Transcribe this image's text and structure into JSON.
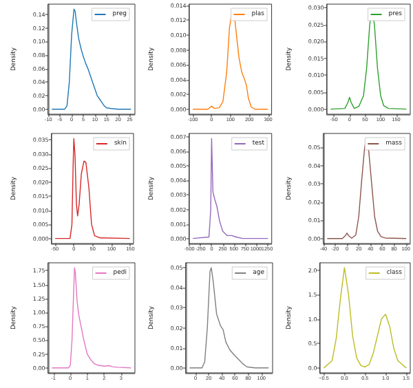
{
  "chart_data": [
    {
      "type": "line",
      "ylabel": "Density",
      "legend": "top right",
      "grid": false,
      "xlim": [
        -10.2,
        27.2
      ],
      "xticks": [
        -10,
        -5,
        0,
        5,
        10,
        15,
        20,
        25
      ],
      "ylim": [
        -0.0074,
        0.1554
      ],
      "yticks": [
        {
          "value": 0,
          "label": "0.00"
        },
        {
          "value": 0.02,
          "label": "0.02"
        },
        {
          "value": 0.04,
          "label": "0.04"
        },
        {
          "value": 0.06,
          "label": "0.06"
        },
        {
          "value": 0.08,
          "label": "0.08"
        },
        {
          "value": 0.1,
          "label": "0.10"
        },
        {
          "value": 0.12,
          "label": "0.12"
        },
        {
          "value": 0.14,
          "label": "0.14"
        }
      ],
      "x": [
        -8.5,
        -3,
        -2,
        -1,
        0,
        1,
        1.5,
        2,
        3,
        4,
        5,
        6,
        7,
        8,
        9,
        10,
        11,
        12,
        13,
        14,
        15,
        17,
        20,
        25.5
      ],
      "series": [
        {
          "name": "preg",
          "color": "#1f77b4",
          "values": [
            0,
            0,
            0.005,
            0.04,
            0.11,
            0.148,
            0.145,
            0.13,
            0.105,
            0.09,
            0.078,
            0.068,
            0.06,
            0.05,
            0.04,
            0.03,
            0.02,
            0.015,
            0.01,
            0.005,
            0.002,
            0.001,
            0,
            0
          ]
        }
      ]
    },
    {
      "type": "line",
      "ylabel": "Density",
      "legend": "top right",
      "grid": false,
      "xlim": [
        -119.4,
        318.4
      ],
      "xticks": [
        -100,
        0,
        100,
        200,
        300
      ],
      "ylim": [
        -0.000675,
        0.014175
      ],
      "yticks": [
        {
          "value": 0,
          "label": "0.000"
        },
        {
          "value": 0.002,
          "label": "0.002"
        },
        {
          "value": 0.004,
          "label": "0.004"
        },
        {
          "value": 0.006,
          "label": "0.006"
        },
        {
          "value": 0.008,
          "label": "0.008"
        },
        {
          "value": 0.01,
          "label": "0.010"
        },
        {
          "value": 0.012,
          "label": "0.012"
        },
        {
          "value": 0.014,
          "label": "0.014"
        }
      ],
      "x": [
        -99.5,
        -20,
        0,
        15,
        40,
        60,
        80,
        95,
        110,
        120,
        130,
        145,
        160,
        175,
        185,
        195,
        210,
        230,
        298.5
      ],
      "series": [
        {
          "name": "plas",
          "color": "#ff7f0e",
          "values": [
            0,
            0,
            0.0004,
            0.0001,
            0.0002,
            0.001,
            0.005,
            0.011,
            0.0135,
            0.0128,
            0.0105,
            0.007,
            0.005,
            0.004,
            0.0032,
            0.0015,
            0.0003,
            0,
            0
          ]
        }
      ]
    },
    {
      "type": "line",
      "ylabel": "Density",
      "legend": "top right",
      "grid": false,
      "xlim": [
        -73.2,
        195.2
      ],
      "xticks": [
        -50,
        0,
        50,
        100,
        150
      ],
      "ylim": [
        -0.0015,
        0.031
      ],
      "yticks": [
        {
          "value": 0,
          "label": "0.000"
        },
        {
          "value": 0.005,
          "label": "0.005"
        },
        {
          "value": 0.01,
          "label": "0.010"
        },
        {
          "value": 0.015,
          "label": "0.015"
        },
        {
          "value": 0.02,
          "label": "0.020"
        },
        {
          "value": 0.025,
          "label": "0.025"
        },
        {
          "value": 0.03,
          "label": "0.030"
        }
      ],
      "x": [
        -61,
        -15,
        -5,
        0,
        5,
        15,
        30,
        45,
        55,
        65,
        72,
        80,
        90,
        100,
        110,
        125,
        183
      ],
      "series": [
        {
          "name": "pres",
          "color": "#2ca02c",
          "values": [
            0,
            0.0002,
            0.002,
            0.0035,
            0.002,
            0.0002,
            0.0008,
            0.004,
            0.012,
            0.025,
            0.0295,
            0.025,
            0.012,
            0.004,
            0.001,
            0.0002,
            0
          ]
        }
      ]
    },
    {
      "type": "line",
      "ylabel": "Density",
      "legend": "top right",
      "grid": false,
      "xlim": [
        -59.4,
        158.4
      ],
      "xticks": [
        -50,
        0,
        50,
        100,
        150
      ],
      "ylim": [
        -0.0018,
        0.0373
      ],
      "yticks": [
        {
          "value": 0,
          "label": "0.000"
        },
        {
          "value": 0.005,
          "label": "0.005"
        },
        {
          "value": 0.01,
          "label": "0.010"
        },
        {
          "value": 0.015,
          "label": "0.015"
        },
        {
          "value": 0.02,
          "label": "0.020"
        },
        {
          "value": 0.025,
          "label": "0.025"
        },
        {
          "value": 0.03,
          "label": "0.030"
        },
        {
          "value": 0.035,
          "label": "0.035"
        }
      ],
      "x": [
        -49.5,
        -10,
        -5,
        -2,
        0,
        3,
        7,
        10,
        14,
        20,
        27,
        32,
        40,
        47,
        55,
        70,
        148.5
      ],
      "series": [
        {
          "name": "skin",
          "color": "#d62728",
          "values": [
            0,
            0,
            0.005,
            0.025,
            0.0355,
            0.03,
            0.012,
            0.008,
            0.012,
            0.023,
            0.0275,
            0.027,
            0.018,
            0.005,
            0.001,
            0.0002,
            0
          ]
        }
      ]
    },
    {
      "type": "line",
      "ylabel": "Density",
      "legend": "top right",
      "grid": false,
      "xlim": [
        -507.6,
        1353.6
      ],
      "xticks": [
        -500,
        -250,
        0,
        250,
        500,
        750,
        1000,
        1250
      ],
      "ylim": [
        -0.00035,
        0.00725
      ],
      "yticks": [
        {
          "value": 0,
          "label": "0.000"
        },
        {
          "value": 0.001,
          "label": "0.001"
        },
        {
          "value": 0.002,
          "label": "0.002"
        },
        {
          "value": 0.003,
          "label": "0.003"
        },
        {
          "value": 0.004,
          "label": "0.004"
        },
        {
          "value": 0.005,
          "label": "0.005"
        },
        {
          "value": 0.006,
          "label": "0.006"
        },
        {
          "value": 0.007,
          "label": "0.007"
        }
      ],
      "x": [
        -423,
        -60,
        -20,
        0,
        15,
        30,
        70,
        120,
        180,
        250,
        350,
        450,
        550,
        700,
        1269
      ],
      "series": [
        {
          "name": "test",
          "color": "#9467bd",
          "values": [
            0,
            0.0001,
            0.002,
            0.0069,
            0.005,
            0.0032,
            0.0027,
            0.0022,
            0.0012,
            0.0005,
            0.0002,
            0.0002,
            0.0001,
            0,
            0
          ]
        }
      ]
    },
    {
      "type": "line",
      "ylabel": "Density",
      "legend": "top right",
      "grid": false,
      "xlim": [
        -40.26,
        107.36
      ],
      "xticks": [
        -40,
        -20,
        0,
        20,
        40,
        60,
        80,
        100
      ],
      "ylim": [
        -0.00275,
        0.05775
      ],
      "yticks": [
        {
          "value": 0,
          "label": "0.00"
        },
        {
          "value": 0.01,
          "label": "0.01"
        },
        {
          "value": 0.02,
          "label": "0.02"
        },
        {
          "value": 0.03,
          "label": "0.03"
        },
        {
          "value": 0.04,
          "label": "0.04"
        },
        {
          "value": 0.05,
          "label": "0.05"
        }
      ],
      "x": [
        -33.55,
        -8,
        -3,
        0,
        3,
        8,
        15,
        20,
        25,
        30,
        33,
        37,
        42,
        47,
        52,
        58,
        65,
        100.65
      ],
      "series": [
        {
          "name": "mass",
          "color": "#8c564b",
          "values": [
            0,
            0,
            0.0015,
            0.003,
            0.0015,
            0.0002,
            0.002,
            0.012,
            0.032,
            0.05,
            0.055,
            0.048,
            0.03,
            0.012,
            0.004,
            0.001,
            0.0003,
            0
          ]
        }
      ]
    },
    {
      "type": "line",
      "ylabel": "Density",
      "legend": "top right",
      "grid": false,
      "xlim": [
        -1.327,
        3.825
      ],
      "xticks": [
        -1,
        0,
        1,
        2,
        3
      ],
      "ylim": [
        -0.09,
        1.89
      ],
      "yticks": [
        {
          "value": 0,
          "label": "0.00"
        },
        {
          "value": 0.25,
          "label": "0.25"
        },
        {
          "value": 0.5,
          "label": "0.50"
        },
        {
          "value": 0.75,
          "label": "0.75"
        },
        {
          "value": 1,
          "label": "1.00"
        },
        {
          "value": 1.25,
          "label": "1.25"
        },
        {
          "value": 1.5,
          "label": "1.50"
        },
        {
          "value": 1.75,
          "label": "1.75"
        }
      ],
      "x": [
        -1.093,
        -0.1,
        0,
        0.1,
        0.2,
        0.25,
        0.3,
        0.4,
        0.5,
        0.6,
        0.8,
        1,
        1.2,
        1.4,
        1.6,
        2,
        2.3,
        2.5,
        2.8,
        3.591
      ],
      "series": [
        {
          "name": "pedi",
          "color": "#e377c2",
          "values": [
            0,
            0,
            0.05,
            0.5,
            1.4,
            1.8,
            1.7,
            1.2,
            0.95,
            0.8,
            0.5,
            0.25,
            0.15,
            0.08,
            0.05,
            0.03,
            0.04,
            0.02,
            0.01,
            0
          ]
        }
      ]
    },
    {
      "type": "line",
      "ylabel": "Density",
      "legend": "top right",
      "grid": false,
      "xlim": [
        -15,
        117
      ],
      "xticks": [
        0,
        20,
        40,
        60,
        80,
        100
      ],
      "ylim": [
        -0.0025,
        0.0525
      ],
      "yticks": [
        {
          "value": 0,
          "label": "0.00"
        },
        {
          "value": 0.01,
          "label": "0.01"
        },
        {
          "value": 0.02,
          "label": "0.02"
        },
        {
          "value": 0.03,
          "label": "0.03"
        },
        {
          "value": 0.04,
          "label": "0.04"
        },
        {
          "value": 0.05,
          "label": "0.05"
        }
      ],
      "x": [
        -9,
        10,
        14,
        18,
        22,
        24,
        27,
        32,
        38,
        42,
        46,
        52,
        60,
        66,
        72,
        78,
        90,
        111
      ],
      "series": [
        {
          "name": "age",
          "color": "#7f7f7f",
          "values": [
            0,
            0,
            0.003,
            0.02,
            0.048,
            0.05,
            0.043,
            0.027,
            0.021,
            0.019,
            0.013,
            0.009,
            0.006,
            0.004,
            0.002,
            0.0005,
            0,
            0
          ]
        }
      ]
    },
    {
      "type": "line",
      "ylabel": "Density",
      "legend": "top right",
      "grid": false,
      "xlim": [
        -0.6,
        1.6
      ],
      "xticks": [
        {
          "value": -0.5,
          "label": "−0.5"
        },
        {
          "value": 0,
          "label": "0.0"
        },
        {
          "value": 0.5,
          "label": "0.5"
        },
        {
          "value": 1,
          "label": "1.0"
        },
        {
          "value": 1.5,
          "label": "1.5"
        }
      ],
      "ylim": [
        -0.1,
        2.15
      ],
      "yticks": [
        {
          "value": 0,
          "label": "0.0"
        },
        {
          "value": 0.5,
          "label": "0.5"
        },
        {
          "value": 1,
          "label": "1.0"
        },
        {
          "value": 1.5,
          "label": "1.5"
        },
        {
          "value": 2,
          "label": "2.0"
        }
      ],
      "x": [
        -0.5,
        -0.3,
        -0.2,
        -0.1,
        0,
        0.1,
        0.2,
        0.3,
        0.4,
        0.5,
        0.6,
        0.7,
        0.8,
        0.9,
        1,
        1.1,
        1.2,
        1.3,
        1.5
      ],
      "series": [
        {
          "name": "class",
          "color": "#bcbd22",
          "values": [
            0,
            0.15,
            0.6,
            1.4,
            2.05,
            1.5,
            0.65,
            0.2,
            0.05,
            0.02,
            0.07,
            0.3,
            0.65,
            1,
            1.1,
            0.85,
            0.4,
            0.15,
            0
          ]
        }
      ]
    }
  ]
}
